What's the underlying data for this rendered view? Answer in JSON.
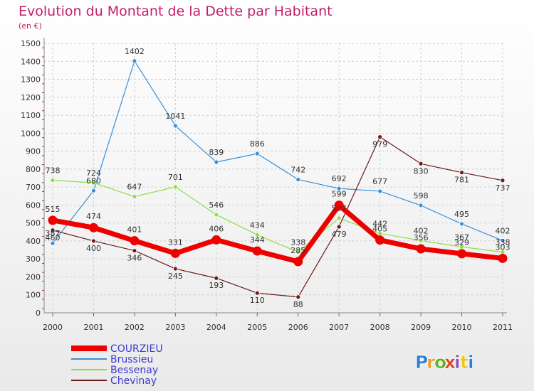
{
  "chart_data": {
    "type": "line",
    "title": "Evolution du Montant de la Dette par Habitant",
    "subtitle": "(en €)",
    "xlabel": "",
    "ylabel": "",
    "ylim": [
      0,
      1500
    ],
    "yticks": [
      "0",
      "100",
      "200",
      "300",
      "400",
      "500",
      "600",
      "700",
      "800",
      "900",
      "1000",
      "1100",
      "1200",
      "1300",
      "1400",
      "1500"
    ],
    "x": [
      "2000",
      "2001",
      "2002",
      "2003",
      "2004",
      "2005",
      "2006",
      "2007",
      "2008",
      "2009",
      "2010",
      "2011"
    ],
    "series": [
      {
        "name": "Brussieu",
        "color": "#3b8fd6",
        "values": [
          387,
          680,
          1402,
          1041,
          839,
          886,
          742,
          692,
          677,
          598,
          495,
          402
        ],
        "labels": [
          "387",
          "680",
          "1402",
          "1041",
          "839",
          "886",
          "742",
          "692",
          "677",
          "598",
          "495",
          "402"
        ]
      },
      {
        "name": "Bessenay",
        "color": "#88e044",
        "values": [
          738,
          724,
          647,
          701,
          546,
          434,
          338,
          527,
          442,
          402,
          367,
          338
        ],
        "labels": [
          "738",
          "724",
          "647",
          "701",
          "546",
          "434",
          "338",
          "527",
          "442",
          "402",
          "367",
          "338"
        ]
      },
      {
        "name": "Chevinay",
        "color": "#6b1a1a",
        "values": [
          460,
          400,
          346,
          245,
          193,
          110,
          88,
          479,
          979,
          830,
          781,
          737
        ],
        "labels": [
          "460",
          "400",
          "346",
          "245",
          "193",
          "110",
          "88",
          "479",
          "979",
          "830",
          "781",
          "737"
        ]
      },
      {
        "name": "COURZIEU",
        "color": "#ee0000",
        "values": [
          515,
          474,
          401,
          331,
          406,
          344,
          285,
          599,
          405,
          356,
          329,
          303
        ],
        "labels": [
          "515",
          "474",
          "401",
          "331",
          "406",
          "344",
          "285",
          "599",
          "405",
          "356",
          "329",
          "303"
        ]
      }
    ],
    "legend": [
      "COURZIEU",
      "Brussieu",
      "Bessenay",
      "Chevinay"
    ],
    "grid": true,
    "legend_position": "bottom-left"
  },
  "brand": {
    "letters": [
      "P",
      "r",
      "o",
      "x",
      "i",
      "t",
      "i"
    ],
    "colors": [
      "#2b7fd4",
      "#f39a1e",
      "#5ab51e",
      "#e23c1a",
      "#8c4fc2",
      "#f0c419",
      "#2b7fd4"
    ]
  }
}
